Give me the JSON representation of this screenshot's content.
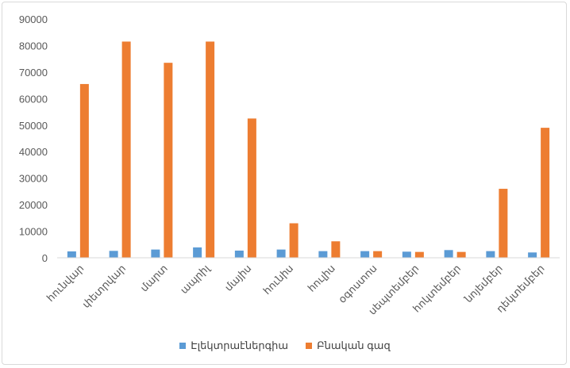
{
  "chart_data": {
    "type": "bar",
    "title": "",
    "xlabel": "",
    "ylabel": "",
    "ylim": [
      0,
      90000
    ],
    "yticks": [
      0,
      10000,
      20000,
      30000,
      40000,
      50000,
      60000,
      70000,
      80000,
      90000
    ],
    "grid": false,
    "legend_position": "bottom",
    "categories": [
      "հունվար",
      "փետրվար",
      "մարտ",
      "ապրիլ",
      "մայիս",
      "հունիս",
      "հուլիս",
      "օգոստոս",
      "սեպտեմբեր",
      "հոկտեմբեր",
      "նոյեմբեր",
      "դեկտեմբեր"
    ],
    "series": [
      {
        "name": "Էլեկտրաէներգիա",
        "color": "#5b9bd5",
        "values": [
          2400,
          2600,
          3100,
          3900,
          2700,
          3100,
          2500,
          2500,
          2300,
          2900,
          2500,
          2000
        ]
      },
      {
        "name": "Բնական գազ",
        "color": "#ed7d31",
        "values": [
          65500,
          81500,
          73500,
          81500,
          52500,
          13000,
          6200,
          2500,
          2200,
          2200,
          26000,
          49000
        ]
      }
    ]
  }
}
